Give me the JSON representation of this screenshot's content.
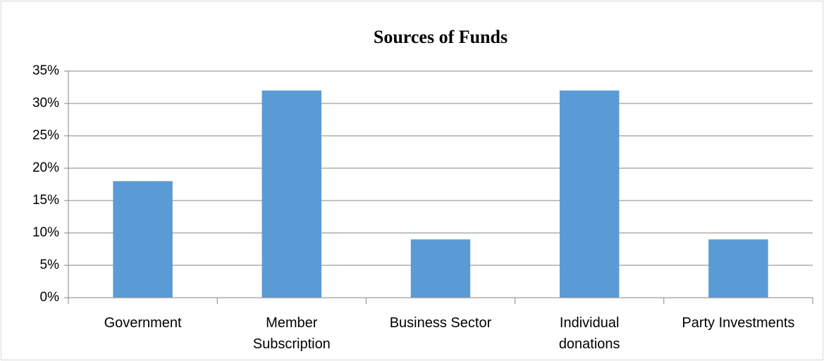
{
  "chart_data": {
    "type": "bar",
    "title": "Sources of Funds",
    "categories": [
      "Government",
      "Member\nSubscription",
      "Business Sector",
      "Individual\ndonations",
      "Party Investments"
    ],
    "values": [
      18,
      32,
      9,
      32,
      9
    ],
    "color": "#5b9bd5",
    "ylim": [
      0,
      35
    ],
    "yticks": [
      {
        "value": 0,
        "label": "0%"
      },
      {
        "value": 5,
        "label": "5%"
      },
      {
        "value": 10,
        "label": "10%"
      },
      {
        "value": 15,
        "label": "15%"
      },
      {
        "value": 20,
        "label": "20%"
      },
      {
        "value": 25,
        "label": "25%"
      },
      {
        "value": 30,
        "label": "30%"
      },
      {
        "value": 35,
        "label": "35%"
      }
    ],
    "grid": true
  }
}
